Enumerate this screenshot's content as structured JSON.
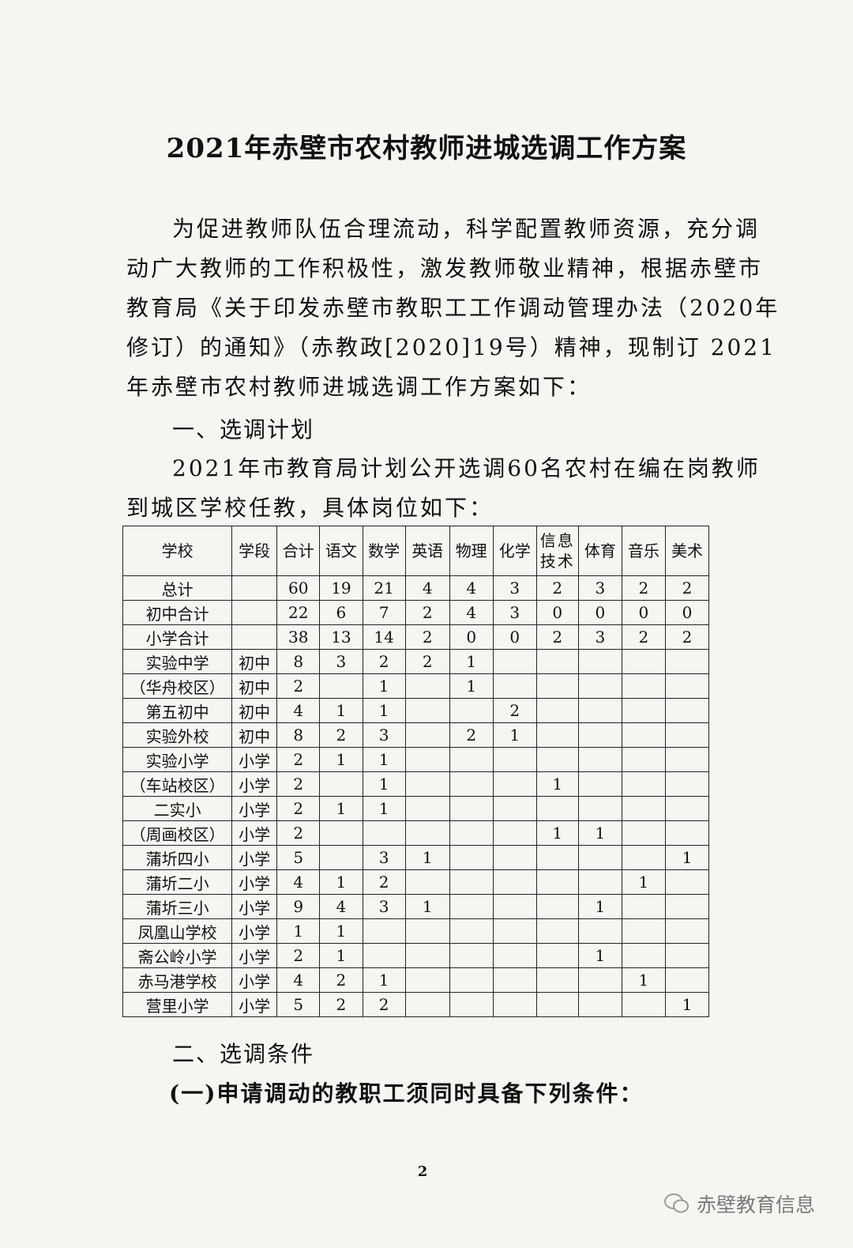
{
  "title": "2021年赤壁市农村教师进城选调工作方案",
  "intro_lines": [
    "为促进教师队伍合理流动，科学配置教师资源，充分调",
    "动广大教师的工作积极性，激发教师敬业精神，根据赤壁市",
    "教育局《关于印发赤壁市教职工工作调动管理办法（2020年",
    "修订）的通知》（赤教政[2020]19号）精神，现制订 2021",
    "年赤壁市农村教师进城选调工作方案如下："
  ],
  "section1": "一、选调计划",
  "plan_lines": [
    "2021年市教育局计划公开选调60名农村在编在岗教师",
    "到城区学校任教，具体岗位如下："
  ],
  "table": {
    "headers": [
      "学校",
      "学段",
      "合计",
      "语文",
      "数学",
      "英语",
      "物理",
      "化学",
      "信息技术",
      "体育",
      "音乐",
      "美术"
    ],
    "rows": [
      [
        "总计",
        "",
        "60",
        "19",
        "21",
        "4",
        "4",
        "3",
        "2",
        "3",
        "2",
        "2"
      ],
      [
        "初中合计",
        "",
        "22",
        "6",
        "7",
        "2",
        "4",
        "3",
        "0",
        "0",
        "0",
        "0"
      ],
      [
        "小学合计",
        "",
        "38",
        "13",
        "14",
        "2",
        "0",
        "0",
        "2",
        "3",
        "2",
        "2"
      ],
      [
        "实验中学",
        "初中",
        "8",
        "3",
        "2",
        "2",
        "1",
        "",
        "",
        "",
        "",
        ""
      ],
      [
        "（华舟校区）",
        "初中",
        "2",
        "",
        "1",
        "",
        "1",
        "",
        "",
        "",
        "",
        ""
      ],
      [
        "第五初中",
        "初中",
        "4",
        "1",
        "1",
        "",
        "",
        "2",
        "",
        "",
        "",
        ""
      ],
      [
        "实验外校",
        "初中",
        "8",
        "2",
        "3",
        "",
        "2",
        "1",
        "",
        "",
        "",
        ""
      ],
      [
        "实验小学",
        "小学",
        "2",
        "1",
        "1",
        "",
        "",
        "",
        "",
        "",
        "",
        ""
      ],
      [
        "（车站校区）",
        "小学",
        "2",
        "",
        "1",
        "",
        "",
        "",
        "1",
        "",
        "",
        ""
      ],
      [
        "二实小",
        "小学",
        "2",
        "1",
        "1",
        "",
        "",
        "",
        "",
        "",
        "",
        ""
      ],
      [
        "（周画校区）",
        "小学",
        "2",
        "",
        "",
        "",
        "",
        "",
        "1",
        "1",
        "",
        ""
      ],
      [
        "蒲圻四小",
        "小学",
        "5",
        "",
        "3",
        "1",
        "",
        "",
        "",
        "",
        "",
        "1"
      ],
      [
        "蒲圻二小",
        "小学",
        "4",
        "1",
        "2",
        "",
        "",
        "",
        "",
        "",
        "1",
        ""
      ],
      [
        "蒲圻三小",
        "小学",
        "9",
        "4",
        "3",
        "1",
        "",
        "",
        "",
        "1",
        "",
        ""
      ],
      [
        "凤凰山学校",
        "小学",
        "1",
        "1",
        "",
        "",
        "",
        "",
        "",
        "",
        "",
        ""
      ],
      [
        "斋公岭小学",
        "小学",
        "2",
        "1",
        "",
        "",
        "",
        "",
        "",
        "1",
        "",
        ""
      ],
      [
        "赤马港学校",
        "小学",
        "4",
        "2",
        "1",
        "",
        "",
        "",
        "",
        "",
        "1",
        ""
      ],
      [
        "营里小学",
        "小学",
        "5",
        "2",
        "2",
        "",
        "",
        "",
        "",
        "",
        "",
        "1"
      ]
    ]
  },
  "section2": "二、选调条件",
  "subsection1": "(一)申请调动的教职工须同时具备下列条件：",
  "page_number": "2",
  "watermark": {
    "icon": "wechat-icon",
    "text": "赤壁教育信息"
  }
}
